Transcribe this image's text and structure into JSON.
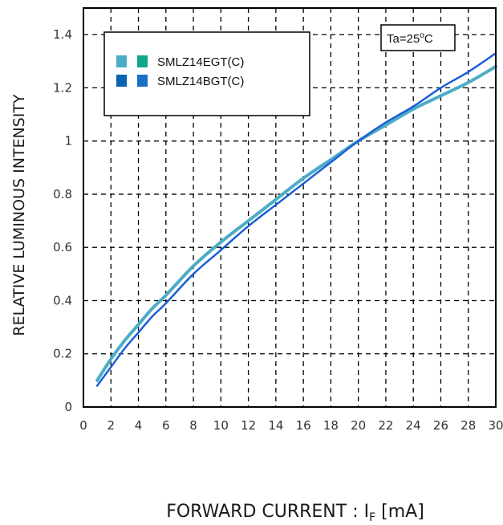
{
  "chart_data": {
    "type": "line",
    "ylabel": "RELATIVE LUMINOUS INTENSITY",
    "xlabel_main": "FORWARD CURRENT : I",
    "xlabel_sub": "F",
    "xlabel_unit": " [mA]",
    "xlim": [
      0,
      30
    ],
    "ylim": [
      0,
      1.5
    ],
    "x_ticks": [
      "0",
      "2",
      "4",
      "6",
      "8",
      "10",
      "12",
      "14",
      "16",
      "18",
      "20",
      "22",
      "24",
      "26",
      "28",
      "30"
    ],
    "y_ticks": [
      "0",
      "0.2",
      "0.4",
      "0.6",
      "0.8",
      "1",
      "1.2",
      "1.4"
    ],
    "grid": "dashed",
    "legend_position": "top-left",
    "annotation": {
      "prefix": "Ta=25",
      "sup": "o",
      "suffix": "C"
    },
    "legend": [
      {
        "name": "SMLZ14EGT(C)",
        "swatch_colors": [
          "#4bacc6",
          "#11a58a"
        ]
      },
      {
        "name": "SMLZ14BGT(C)",
        "swatch_colors": [
          "#0a64b4",
          "#1a6fc4"
        ]
      }
    ],
    "series": [
      {
        "name": "SMLZ14EGT(C)",
        "color": "#4bacc6",
        "x": [
          1,
          2,
          3,
          4,
          5,
          6,
          8,
          10,
          12,
          14,
          16,
          18,
          20,
          22,
          24,
          26,
          28,
          30
        ],
        "y": [
          0.1,
          0.18,
          0.25,
          0.31,
          0.37,
          0.42,
          0.53,
          0.62,
          0.7,
          0.78,
          0.86,
          0.93,
          1.0,
          1.06,
          1.12,
          1.17,
          1.22,
          1.28
        ]
      },
      {
        "name": "SMLZ14BGT(C)",
        "color": "#1a5fd6",
        "x": [
          1,
          2,
          3,
          4,
          5,
          6,
          8,
          10,
          12,
          14,
          16,
          18,
          20,
          22,
          24,
          26,
          28,
          30
        ],
        "y": [
          0.08,
          0.15,
          0.22,
          0.28,
          0.34,
          0.39,
          0.5,
          0.59,
          0.68,
          0.76,
          0.84,
          0.92,
          1.0,
          1.07,
          1.13,
          1.2,
          1.26,
          1.33
        ]
      }
    ]
  }
}
